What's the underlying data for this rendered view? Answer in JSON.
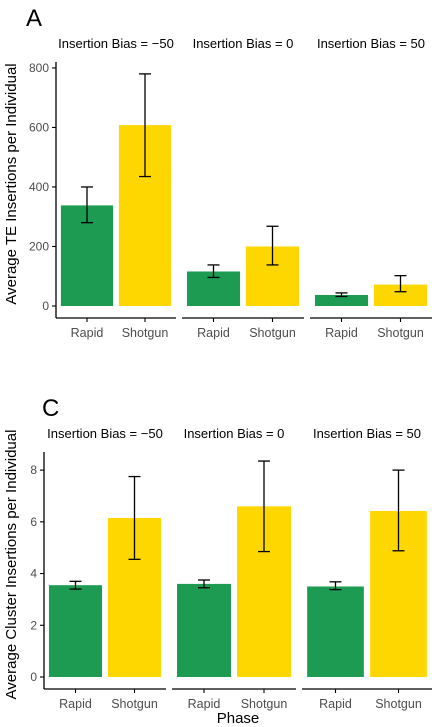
{
  "colors": {
    "rapid": "#1E9B52",
    "shotgun": "#FFD700",
    "axis": "#000000",
    "tick_text": "#4D4D4D"
  },
  "chart_data": [
    {
      "type": "bar",
      "panel_label": "A",
      "ylabel": "Average TE Insertions per Individual",
      "xlabel": "",
      "ylim": [
        0,
        820
      ],
      "yticks": [
        0,
        200,
        400,
        600,
        800
      ],
      "categories": [
        "Rapid",
        "Shotgun"
      ],
      "facets": [
        {
          "title": "Insertion Bias = −50",
          "values": [
            338,
            608
          ],
          "err_low": [
            280,
            435
          ],
          "err_high": [
            400,
            780
          ]
        },
        {
          "title": "Insertion Bias = 0",
          "values": [
            116,
            200
          ],
          "err_low": [
            96,
            138
          ],
          "err_high": [
            138,
            268
          ]
        },
        {
          "title": "Insertion Bias = 50",
          "values": [
            37,
            72
          ],
          "err_low": [
            32,
            48
          ],
          "err_high": [
            44,
            102
          ]
        }
      ],
      "grid": false
    },
    {
      "type": "bar",
      "panel_label": "C",
      "ylabel": "Average Cluster Insertions per Individual",
      "xlabel": "Phase",
      "ylim": [
        0,
        8.7
      ],
      "yticks": [
        0,
        2,
        4,
        6,
        8
      ],
      "categories": [
        "Rapid",
        "Shotgun"
      ],
      "facets": [
        {
          "title": "Insertion Bias = −50",
          "values": [
            3.55,
            6.15
          ],
          "err_low": [
            3.4,
            4.55
          ],
          "err_high": [
            3.7,
            7.75
          ]
        },
        {
          "title": "Insertion Bias = 0",
          "values": [
            3.6,
            6.6
          ],
          "err_low": [
            3.45,
            4.85
          ],
          "err_high": [
            3.75,
            8.35
          ]
        },
        {
          "title": "Insertion Bias = 50",
          "values": [
            3.5,
            6.42
          ],
          "err_low": [
            3.38,
            4.88
          ],
          "err_high": [
            3.68,
            8.0
          ]
        }
      ],
      "grid": false
    }
  ]
}
